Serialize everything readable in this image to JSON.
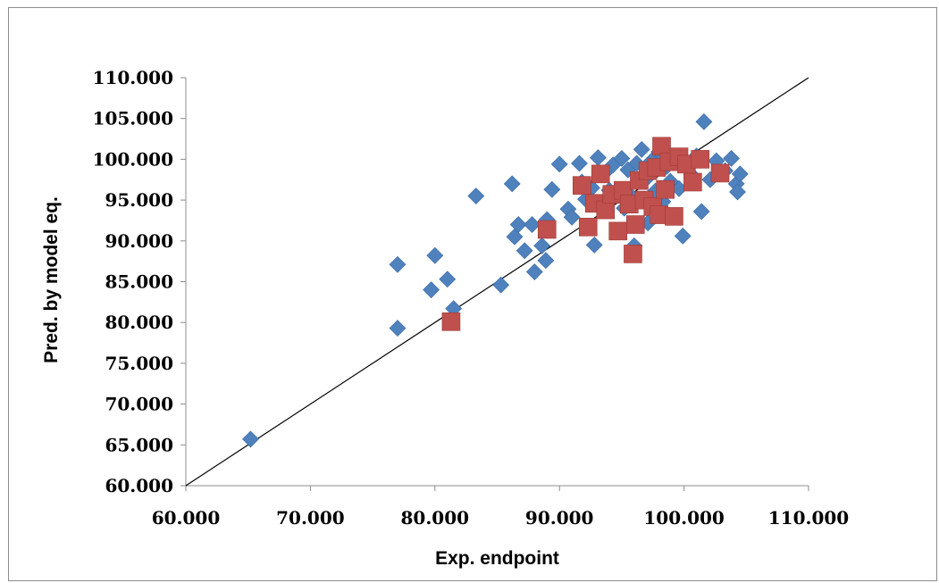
{
  "chart_data": {
    "type": "scatter",
    "xlabel": "Exp. endpoint",
    "ylabel": "Pred. by model eq.",
    "xlim": [
      60,
      110
    ],
    "ylim": [
      60,
      110
    ],
    "x_ticks": [
      "60.000",
      "70.000",
      "80.000",
      "90.000",
      "100.000",
      "110.000"
    ],
    "y_ticks": [
      "60.000",
      "65.000",
      "70.000",
      "75.000",
      "80.000",
      "85.000",
      "90.000",
      "95.000",
      "100.000",
      "105.000",
      "110.000"
    ],
    "grid": false,
    "legend": "none",
    "reference_line": {
      "from": [
        60,
        60
      ],
      "to": [
        110,
        110
      ],
      "color": "#000000"
    },
    "series": [
      {
        "marker": "diamond",
        "color": "#4f81bd",
        "points": [
          [
            65.2,
            65.7
          ],
          [
            77.0,
            79.3
          ],
          [
            77.0,
            87.1
          ],
          [
            79.7,
            84.0
          ],
          [
            80.0,
            88.2
          ],
          [
            81.0,
            85.3
          ],
          [
            81.5,
            81.7
          ],
          [
            83.3,
            95.5
          ],
          [
            85.3,
            84.6
          ],
          [
            86.2,
            97.0
          ],
          [
            86.4,
            90.5
          ],
          [
            86.7,
            92.0
          ],
          [
            87.2,
            88.8
          ],
          [
            87.8,
            92.0
          ],
          [
            88.0,
            86.2
          ],
          [
            88.6,
            89.4
          ],
          [
            88.9,
            87.6
          ],
          [
            89.0,
            92.6
          ],
          [
            89.4,
            96.3
          ],
          [
            90.0,
            99.4
          ],
          [
            90.7,
            93.9
          ],
          [
            91.0,
            92.9
          ],
          [
            91.6,
            99.5
          ],
          [
            91.8,
            97.2
          ],
          [
            92.1,
            95.1
          ],
          [
            92.6,
            96.5
          ],
          [
            92.8,
            89.5
          ],
          [
            93.1,
            100.2
          ],
          [
            93.4,
            94.2
          ],
          [
            93.6,
            98.3
          ],
          [
            94.0,
            96.2
          ],
          [
            94.3,
            99.3
          ],
          [
            94.7,
            95.9
          ],
          [
            95.0,
            100.1
          ],
          [
            95.2,
            94.0
          ],
          [
            95.5,
            98.7
          ],
          [
            95.8,
            95.4
          ],
          [
            96.0,
            89.4
          ],
          [
            96.2,
            99.5
          ],
          [
            96.6,
            101.2
          ],
          [
            96.9,
            97.5
          ],
          [
            97.1,
            92.2
          ],
          [
            97.4,
            99.8
          ],
          [
            97.7,
            96.1
          ],
          [
            98.0,
            100.9
          ],
          [
            98.3,
            94.8
          ],
          [
            98.6,
            99.1
          ],
          [
            98.9,
            97.3
          ],
          [
            99.3,
            100.3
          ],
          [
            99.6,
            96.4
          ],
          [
            99.9,
            90.6
          ],
          [
            100.3,
            99.0
          ],
          [
            100.6,
            98.1
          ],
          [
            101.0,
            100.4
          ],
          [
            101.4,
            93.6
          ],
          [
            101.6,
            104.6
          ],
          [
            102.1,
            97.5
          ],
          [
            102.6,
            99.8
          ],
          [
            103.3,
            98.6
          ],
          [
            103.8,
            100.1
          ],
          [
            104.2,
            97.0
          ],
          [
            104.3,
            96.0
          ],
          [
            104.5,
            98.2
          ]
        ]
      },
      {
        "marker": "square",
        "color": "#c0504d",
        "points": [
          [
            81.3,
            80.1
          ],
          [
            89.0,
            91.4
          ],
          [
            91.8,
            96.8
          ],
          [
            92.3,
            91.7
          ],
          [
            92.8,
            94.6
          ],
          [
            93.3,
            98.2
          ],
          [
            93.7,
            93.8
          ],
          [
            94.2,
            95.7
          ],
          [
            94.7,
            91.2
          ],
          [
            95.1,
            96.2
          ],
          [
            95.6,
            94.5
          ],
          [
            95.9,
            88.4
          ],
          [
            96.1,
            92.0
          ],
          [
            96.4,
            97.4
          ],
          [
            96.8,
            95.0
          ],
          [
            97.1,
            98.6
          ],
          [
            97.5,
            94.2
          ],
          [
            97.8,
            99.0
          ],
          [
            98.0,
            93.2
          ],
          [
            98.2,
            101.6
          ],
          [
            98.5,
            96.3
          ],
          [
            98.8,
            99.7
          ],
          [
            99.2,
            93.0
          ],
          [
            99.6,
            100.3
          ],
          [
            100.2,
            99.4
          ],
          [
            100.7,
            97.2
          ],
          [
            101.3,
            100.0
          ],
          [
            102.9,
            98.3
          ]
        ]
      }
    ]
  }
}
